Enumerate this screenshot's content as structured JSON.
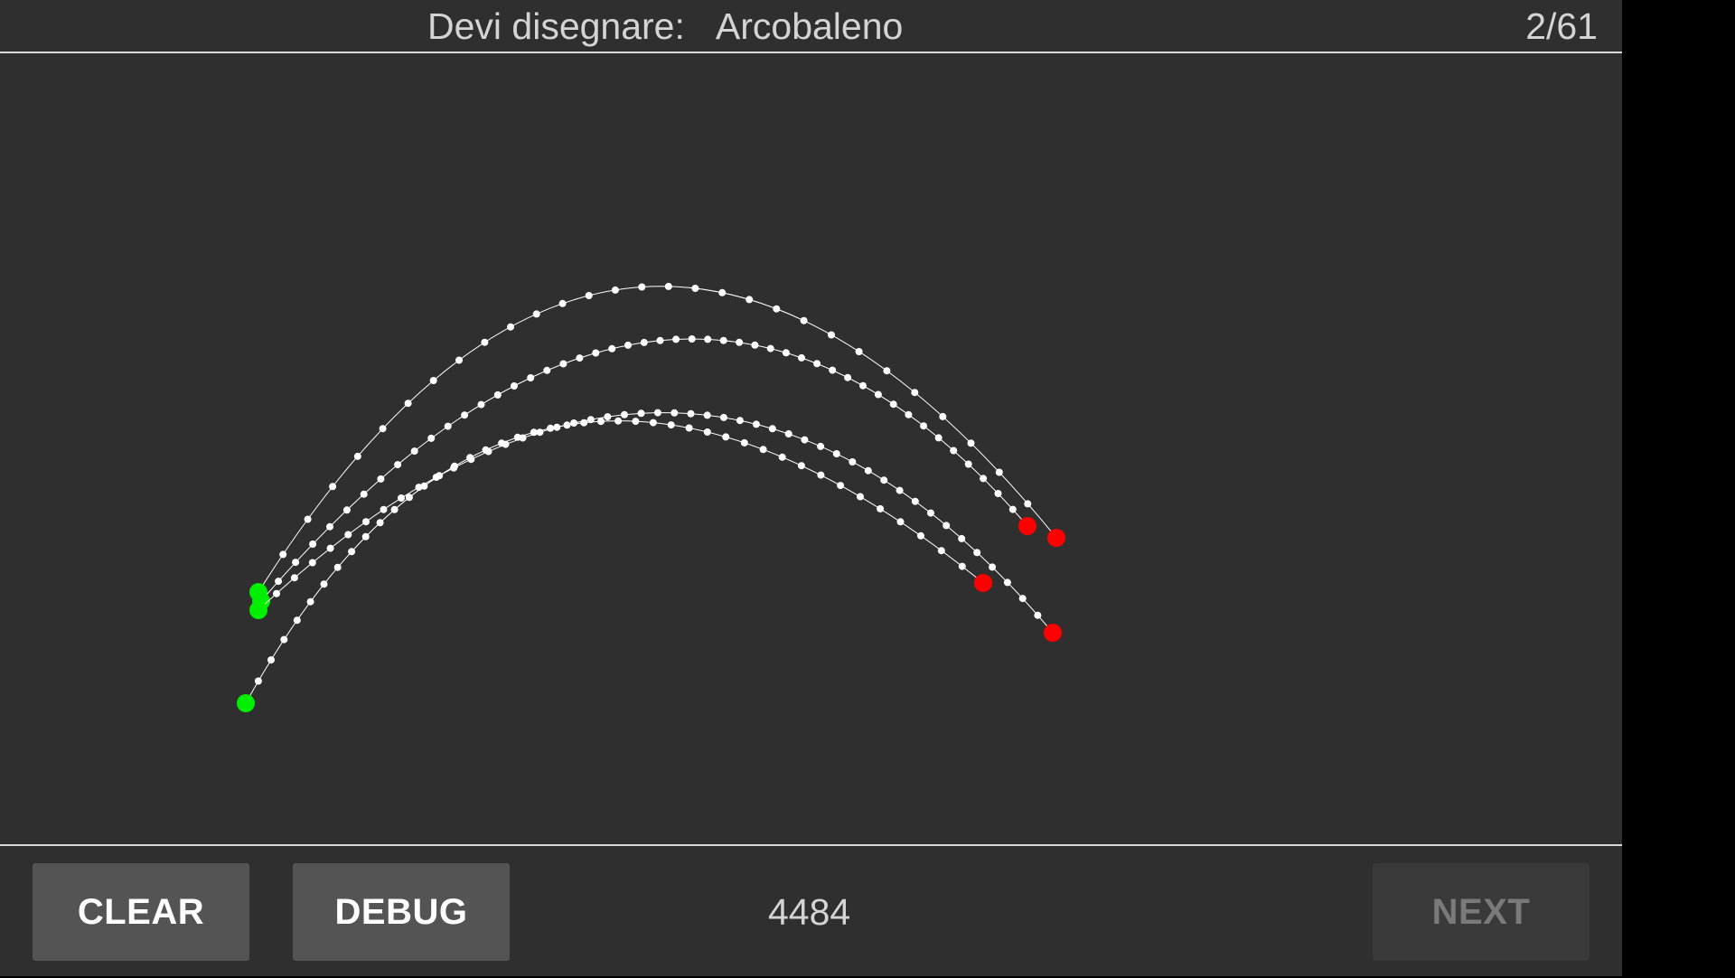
{
  "header": {
    "prompt_label": "Devi disegnare:",
    "word": "Arcobaleno",
    "progress": "2/61"
  },
  "footer": {
    "clear_label": "CLEAR",
    "debug_label": "DEBUG",
    "score": "4484",
    "next_label": "NEXT",
    "next_enabled": false
  },
  "colors": {
    "background": "#2f2f2f",
    "stroke": "#ffffff",
    "start_point": "#00ee00",
    "end_point": "#ff0000"
  },
  "drawing": {
    "stroke_count": 4
  }
}
